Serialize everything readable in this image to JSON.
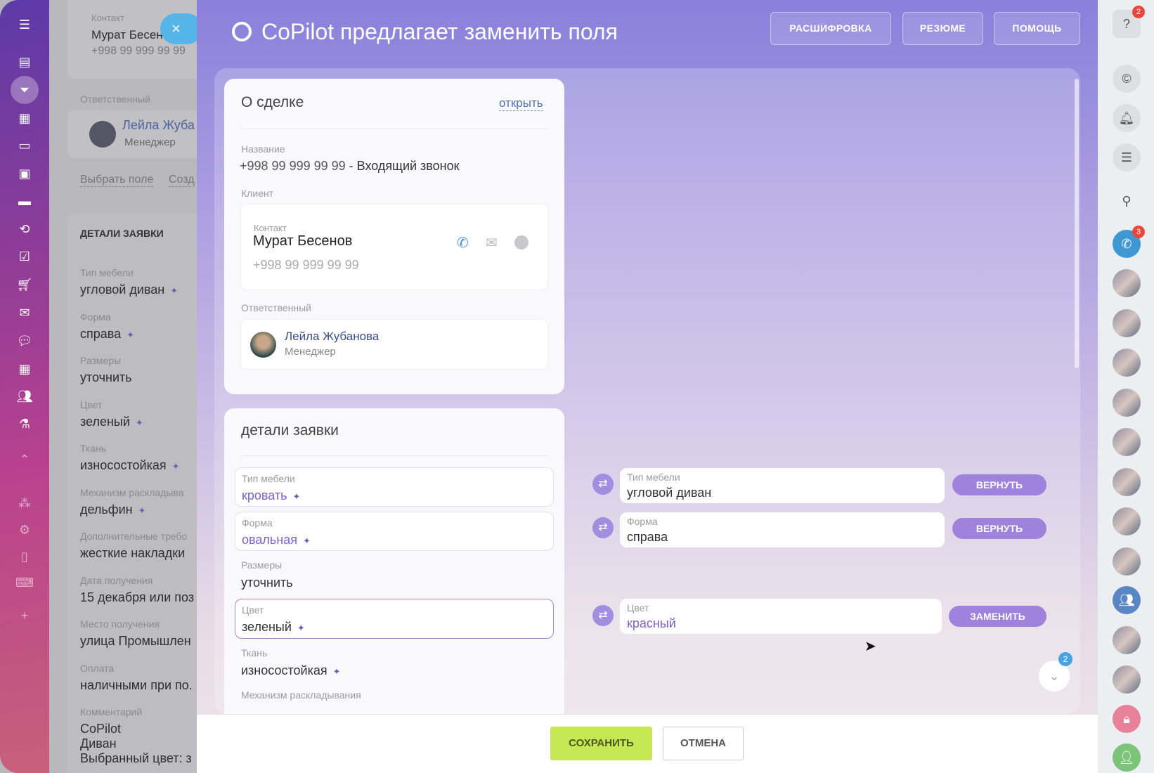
{
  "left_nav": {
    "icons": [
      "menu-icon",
      "feed-icon",
      "funnel-icon",
      "grid-icon",
      "window-icon",
      "contact-card-icon",
      "inbox-icon",
      "sync-icon",
      "tasks-icon",
      "cart-icon",
      "mail-icon",
      "chat-icon",
      "calendar-icon",
      "group-icon",
      "lab-icon",
      "collapse-icon",
      "sitemap-icon",
      "settings-icon",
      "tablet-icon",
      "laptop-icon",
      "plus-icon"
    ]
  },
  "background_card": {
    "contact_label": "Контакт",
    "contact_name": "Мурат Бесен",
    "contact_phone": "+998 99 999 99 99",
    "responsible_label": "Ответственный",
    "responsible_name": "Лейла Жуба",
    "responsible_role": "Менеджер",
    "link_choose": "Выбрать поле",
    "link_create": "Созд",
    "section_title": "ДЕТАЛИ ЗАЯВКИ",
    "fields": [
      {
        "label": "Тип мебели",
        "value": "угловой диван",
        "ai": true
      },
      {
        "label": "Форма",
        "value": "справа",
        "ai": true
      },
      {
        "label": "Размеры",
        "value": "уточнить",
        "ai": false
      },
      {
        "label": "Цвет",
        "value": "зеленый",
        "ai": true
      },
      {
        "label": "Ткань",
        "value": "износостойкая",
        "ai": true
      },
      {
        "label": "Механизм раскладыва",
        "value": "дельфин",
        "ai": true
      },
      {
        "label": "Дополнительные требо",
        "value": "жесткие накладки",
        "ai": false
      },
      {
        "label": "Дата получения",
        "value": "15 декабря или поз",
        "ai": false
      },
      {
        "label": "Место получения",
        "value": "улица Промышлен",
        "ai": false
      },
      {
        "label": "Оплата",
        "value": "наличными при по.",
        "ai": false
      },
      {
        "label": "Комментарий",
        "value": "CoPilot",
        "ai": false
      }
    ],
    "comment_lines": [
      "Диван",
      "Выбранный цвет: з"
    ]
  },
  "close_button": "×",
  "slider": {
    "title": "CoPilot предлагает заменить поля",
    "buttons": {
      "transcript": "РАСШИФРОВКА",
      "summary": "РЕЗЮМЕ",
      "help": "ПОМОЩЬ"
    },
    "deal_card": {
      "title": "О сделке",
      "open_link": "открыть",
      "name_label": "Название",
      "name_phone": "+998 99 999 99 99",
      "name_suffix": "- Входящий звонок",
      "client_label": "Клиент",
      "contact_label": "Контакт",
      "contact_name": "Мурат Бесенов",
      "contact_phone": "+998 99 999 99 99",
      "responsible_label": "Ответственный",
      "responsible_name": "Лейла Жубанова",
      "responsible_role": "Менеджер"
    },
    "details_card": {
      "title": "детали заявки",
      "fields": [
        {
          "label": "Тип мебели",
          "value": "кровать"
        },
        {
          "label": "Форма",
          "value": "овальная"
        },
        {
          "label": "Размеры",
          "value": "уточнить"
        },
        {
          "label": "Цвет",
          "value": "зеленый"
        },
        {
          "label": "Ткань",
          "value": "износостойкая"
        },
        {
          "label": "Механизм раскладывания",
          "value": ""
        }
      ]
    },
    "suggestions": [
      {
        "label": "Тип мебели",
        "value": "угловой диван",
        "action": "ВЕРНУТЬ"
      },
      {
        "label": "Форма",
        "value": "справа",
        "action": "ВЕРНУТЬ"
      },
      {
        "label": "Цвет",
        "value": "красный",
        "action": "ЗАМЕНИТЬ"
      }
    ],
    "scroll_badge": "2",
    "footer": {
      "save": "СОХРАНИТЬ",
      "cancel": "ОТМЕНА"
    }
  },
  "right_bar": {
    "help_badge": "2",
    "phone_badge": "3"
  },
  "colors": {
    "accent": "#9f82dc",
    "save": "#c5e854",
    "close": "#55b5e8",
    "badge": "#e9473c"
  }
}
